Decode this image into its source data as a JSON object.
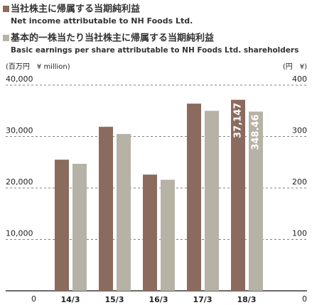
{
  "chart_data": {
    "type": "bar",
    "categories": [
      "14/3",
      "15/3",
      "16/3",
      "17/3",
      "18/3"
    ],
    "series": [
      {
        "name": "当社株主に帰属する当期純利益",
        "name_en": "Net income attributable to NH Foods Ltd.",
        "color": "#8b6b5e",
        "values": [
          25500,
          31900,
          22600,
          36400,
          37147
        ],
        "value_labels": [
          null,
          null,
          null,
          null,
          "37,147"
        ]
      },
      {
        "name": "基本的一株当たり当社株主に帰属する当期純利益",
        "name_en": "Basic earnings per share attributable to NH Foods Ltd. shareholders",
        "color": "#b6b2a6",
        "axis": "y2",
        "values": [
          247,
          305,
          216,
          350,
          348.46
        ]
      }
    ],
    "ylabel": "(百万円　¥ million)",
    "y2label": "(円　¥)",
    "ylim": [
      0,
      40000
    ],
    "yticks": [
      0,
      {
        "value": 10000,
        "label": "10,000"
      },
      {
        "value": 20000,
        "label": "20,000"
      },
      {
        "value": 30000,
        "label": "30,000"
      },
      {
        "value": 40000,
        "label": "40,000"
      }
    ],
    "y2lim": [
      0,
      400
    ],
    "y2ticks": [
      0,
      100,
      200,
      300,
      400
    ],
    "grid": true
  }
}
